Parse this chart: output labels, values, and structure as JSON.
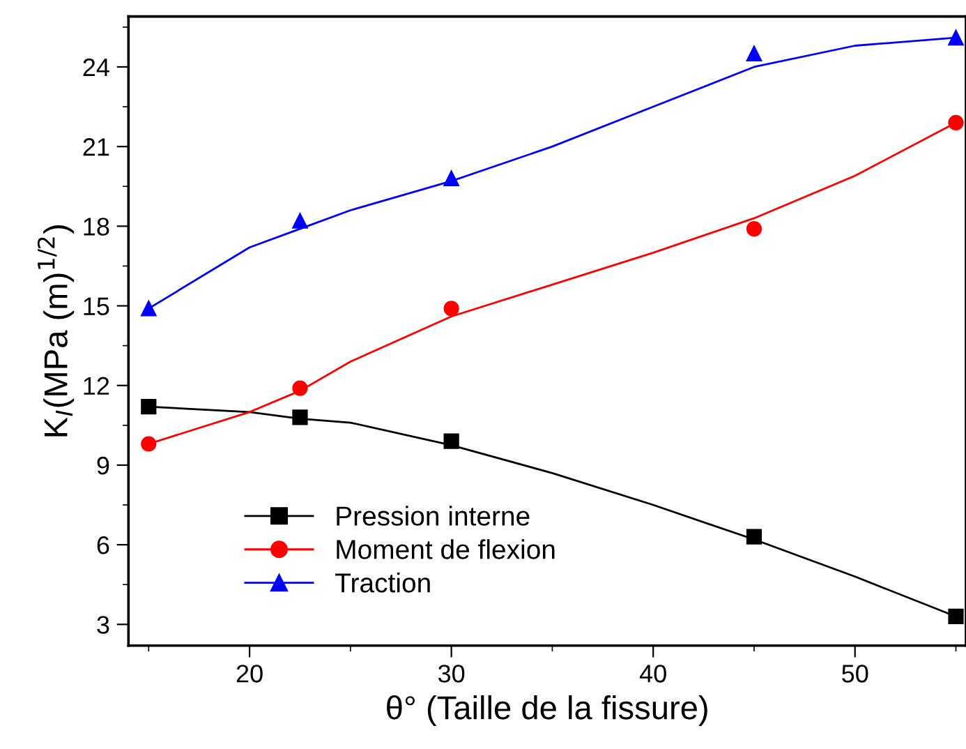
{
  "chart_data": {
    "type": "scatter",
    "xlabel": "θ° (Taille de la fissure)",
    "ylabel": "K$_{I}$(MPa (m)$^{1/2}$)",
    "x": [
      15,
      22.5,
      30,
      45,
      55
    ],
    "series": [
      {
        "name": "Pression interne",
        "color": "#000000",
        "marker": "square",
        "values": [
          11.2,
          10.8,
          9.9,
          6.3,
          3.3
        ]
      },
      {
        "name": "Moment de flexion",
        "color": "#ff0000",
        "marker": "circle",
        "values": [
          9.8,
          11.9,
          14.9,
          17.9,
          21.9
        ]
      },
      {
        "name": "Traction",
        "color": "#0000ff",
        "marker": "triangle",
        "values": [
          14.9,
          18.2,
          19.8,
          24.5,
          25.1
        ]
      },
      {
        "type": "line",
        "color": "#000000",
        "x": [
          15,
          20,
          22.5,
          25,
          30,
          35,
          40,
          45,
          50,
          55
        ],
        "values": [
          11.2,
          11.0,
          10.75,
          10.6,
          9.75,
          8.7,
          7.5,
          6.2,
          4.8,
          3.3
        ]
      },
      {
        "type": "line",
        "color": "#ff0000",
        "x": [
          15,
          20,
          22.5,
          25,
          30,
          35,
          40,
          45,
          50,
          55
        ],
        "values": [
          9.8,
          11.0,
          11.8,
          12.9,
          14.6,
          15.8,
          17.0,
          18.3,
          19.9,
          21.9
        ]
      },
      {
        "type": "line",
        "color": "#0000ff",
        "x": [
          15,
          20,
          22.5,
          25,
          30,
          35,
          40,
          45,
          50,
          55
        ],
        "values": [
          14.9,
          17.2,
          17.9,
          18.6,
          19.7,
          21.0,
          22.5,
          24.0,
          24.8,
          25.1
        ]
      }
    ],
    "xlim": [
      14,
      55.5
    ],
    "xticks": [
      20,
      30,
      40,
      50
    ],
    "ylim": [
      2.2,
      25.9
    ],
    "yticks": [
      3,
      6,
      9,
      12,
      15,
      18,
      21,
      24
    ],
    "grid": false,
    "legend": "bottom left",
    "line_style": "solid"
  }
}
